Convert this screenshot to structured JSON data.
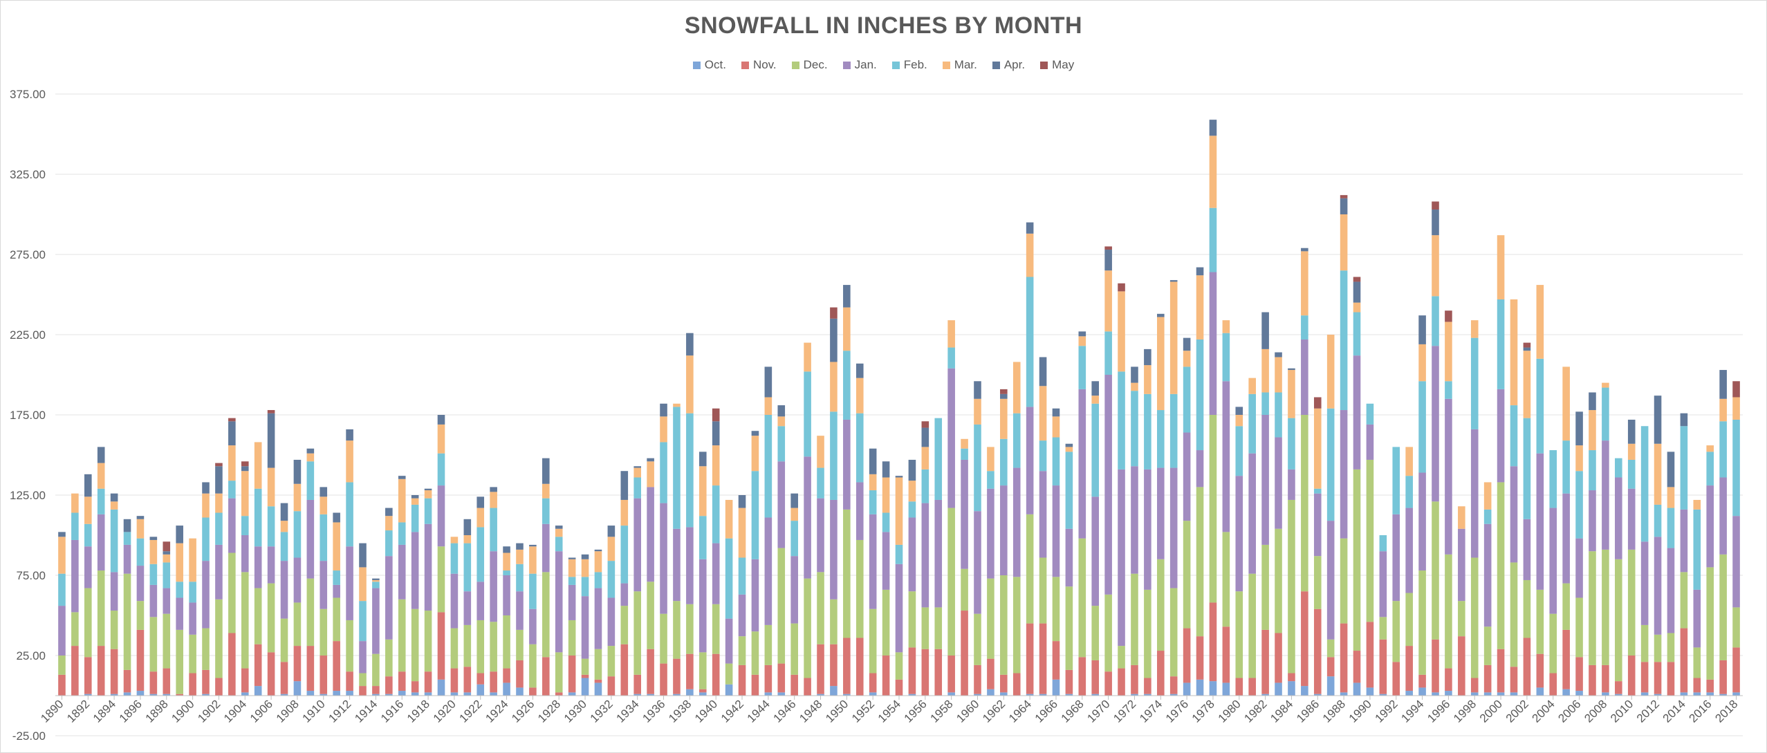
{
  "chart_data": {
    "type": "bar",
    "stacked": true,
    "title": "SNOWFALL IN INCHES BY MONTH",
    "xlabel": "",
    "ylabel": "",
    "ylim": [
      -25,
      375
    ],
    "yticks": [
      "375.00",
      "325.00",
      "275.00",
      "225.00",
      "175.00",
      "125.00",
      "75.00",
      "25.00",
      "-25.00"
    ],
    "legend_position": "top",
    "grid": true,
    "categories": [
      1890,
      1891,
      1892,
      1893,
      1894,
      1895,
      1896,
      1897,
      1898,
      1899,
      1900,
      1901,
      1902,
      1903,
      1904,
      1905,
      1906,
      1907,
      1908,
      1909,
      1910,
      1911,
      1912,
      1913,
      1914,
      1915,
      1916,
      1917,
      1918,
      1919,
      1920,
      1921,
      1922,
      1923,
      1924,
      1925,
      1926,
      1927,
      1928,
      1929,
      1930,
      1931,
      1932,
      1933,
      1934,
      1935,
      1936,
      1937,
      1938,
      1939,
      1940,
      1941,
      1942,
      1943,
      1944,
      1945,
      1946,
      1947,
      1948,
      1949,
      1950,
      1951,
      1952,
      1953,
      1954,
      1955,
      1956,
      1957,
      1958,
      1959,
      1960,
      1961,
      1962,
      1963,
      1964,
      1965,
      1966,
      1967,
      1968,
      1969,
      1970,
      1971,
      1972,
      1973,
      1974,
      1975,
      1976,
      1977,
      1978,
      1979,
      1980,
      1981,
      1982,
      1983,
      1984,
      1985,
      1986,
      1987,
      1988,
      1989,
      1990,
      1991,
      1992,
      1993,
      1994,
      1995,
      1996,
      1997,
      1998,
      1999,
      2000,
      2001,
      2002,
      2003,
      2004,
      2005,
      2006,
      2007,
      2008,
      2009,
      2010,
      2011,
      2012,
      2013,
      2014,
      2015,
      2016,
      2017,
      2018
    ],
    "xtick_labels": [
      "1890",
      "1892",
      "1894",
      "1896",
      "1898",
      "1900",
      "1902",
      "1904",
      "1906",
      "1908",
      "1910",
      "1912",
      "1914",
      "1916",
      "1918",
      "1920",
      "1922",
      "1924",
      "1926",
      "1928",
      "1930",
      "1932",
      "1934",
      "1936",
      "1938",
      "1940",
      "1942",
      "1944",
      "1946",
      "1948",
      "1950",
      "1952",
      "1954",
      "1956",
      "1958",
      "1960",
      "1962",
      "1964",
      "1966",
      "1968",
      "1970",
      "1972",
      "1974",
      "1976",
      "1978",
      "1980",
      "1982",
      "1984",
      "1986",
      "1988",
      "1990",
      "1992",
      "1994",
      "1996",
      "1998",
      "2000",
      "2002",
      "2004",
      "2006",
      "2008",
      "2010",
      "2012",
      "2014",
      "2016",
      "2018"
    ],
    "series": [
      {
        "name": "Oct.",
        "color": "#7ea6d9",
        "values": [
          0,
          0,
          1,
          0,
          1,
          2,
          3,
          1,
          1,
          0,
          0,
          1,
          0,
          0,
          2,
          6,
          0,
          1,
          9,
          3,
          1,
          3,
          3,
          0,
          1,
          1,
          3,
          2,
          2,
          10,
          2,
          2,
          7,
          2,
          8,
          5,
          0,
          0,
          0,
          2,
          11,
          8,
          0,
          0,
          1,
          1,
          0,
          1,
          4,
          2,
          0,
          7,
          0,
          0,
          2,
          2,
          0,
          0,
          1,
          6,
          1,
          0,
          2,
          0,
          0,
          1,
          0,
          0,
          2,
          0,
          1,
          4,
          2,
          0,
          1,
          1,
          10,
          1,
          0,
          1,
          0,
          0,
          1,
          1,
          0,
          1,
          8,
          10,
          9,
          8,
          0,
          0,
          1,
          8,
          9,
          6,
          1,
          12,
          2,
          8,
          5,
          1,
          0,
          3,
          5,
          2,
          3,
          0,
          2,
          2,
          2,
          2,
          0,
          5,
          0,
          4,
          3,
          0,
          2,
          1,
          0,
          2,
          1,
          0,
          2,
          2,
          2,
          1,
          2
        ]
      },
      {
        "name": "Nov.",
        "color": "#d97673",
        "values": [
          13,
          31,
          23,
          31,
          28,
          14,
          38,
          14,
          16,
          1,
          14,
          15,
          11,
          39,
          15,
          26,
          27,
          20,
          22,
          28,
          24,
          31,
          12,
          6,
          5,
          11,
          12,
          7,
          13,
          42,
          15,
          16,
          7,
          13,
          9,
          17,
          5,
          24,
          2,
          23,
          2,
          2,
          12,
          32,
          12,
          28,
          20,
          22,
          22,
          2,
          26,
          0,
          19,
          13,
          17,
          18,
          13,
          11,
          31,
          26,
          35,
          36,
          12,
          25,
          10,
          29,
          29,
          29,
          23,
          53,
          18,
          19,
          11,
          14,
          44,
          44,
          24,
          15,
          24,
          21,
          15,
          17,
          18,
          10,
          28,
          11,
          34,
          27,
          49,
          35,
          11,
          11,
          40,
          31,
          5,
          59,
          53,
          12,
          43,
          20,
          41,
          34,
          21,
          28,
          8,
          33,
          14,
          37,
          9,
          17,
          27,
          16,
          36,
          21,
          14,
          37,
          21,
          19,
          17,
          8,
          25,
          19,
          20,
          21,
          40,
          9,
          8,
          21,
          28
        ]
      },
      {
        "name": "Dec.",
        "color": "#b3cc7c",
        "values": [
          12,
          21,
          43,
          47,
          24,
          60,
          18,
          34,
          34,
          40,
          24,
          26,
          49,
          50,
          60,
          35,
          43,
          27,
          27,
          42,
          29,
          27,
          32,
          8,
          20,
          23,
          45,
          45,
          38,
          41,
          25,
          26,
          33,
          31,
          33,
          19,
          27,
          53,
          25,
          22,
          10,
          19,
          19,
          24,
          52,
          42,
          31,
          36,
          31,
          23,
          31,
          13,
          18,
          27,
          25,
          72,
          32,
          62,
          45,
          28,
          80,
          61,
          40,
          41,
          17,
          35,
          26,
          26,
          92,
          26,
          32,
          50,
          62,
          60,
          68,
          41,
          40,
          52,
          74,
          34,
          48,
          14,
          57,
          55,
          57,
          55,
          67,
          93,
          117,
          59,
          54,
          65,
          53,
          65,
          108,
          110,
          33,
          11,
          53,
          113,
          101,
          14,
          38,
          33,
          65,
          86,
          71,
          22,
          75,
          24,
          104,
          65,
          36,
          40,
          37,
          29,
          37,
          71,
          72,
          76,
          66,
          23,
          17,
          18,
          35,
          19,
          70,
          66,
          25
        ]
      },
      {
        "name": "Jan.",
        "color": "#a18bc0",
        "values": [
          31,
          45,
          26,
          35,
          24,
          18,
          22,
          20,
          16,
          20,
          20,
          42,
          34,
          34,
          23,
          26,
          23,
          36,
          28,
          49,
          30,
          8,
          46,
          20,
          41,
          52,
          34,
          48,
          54,
          38,
          34,
          21,
          24,
          44,
          25,
          24,
          22,
          30,
          63,
          22,
          39,
          38,
          30,
          14,
          58,
          59,
          69,
          45,
          48,
          58,
          38,
          28,
          26,
          45,
          67,
          54,
          42,
          76,
          46,
          62,
          56,
          36,
          59,
          36,
          55,
          46,
          65,
          67,
          87,
          68,
          64,
          56,
          56,
          68,
          67,
          54,
          57,
          36,
          93,
          68,
          137,
          110,
          67,
          75,
          57,
          75,
          55,
          23,
          89,
          94,
          72,
          75,
          81,
          57,
          19,
          47,
          39,
          74,
          80,
          71,
          22,
          41,
          54,
          53,
          61,
          97,
          97,
          45,
          80,
          64,
          58,
          60,
          38,
          85,
          66,
          56,
          37,
          38,
          68,
          51,
          38,
          52,
          61,
          53,
          39,
          36,
          51,
          48,
          57
        ]
      },
      {
        "name": "Feb.",
        "color": "#76c5d8",
        "values": [
          20,
          17,
          14,
          16,
          39,
          8,
          17,
          13,
          16,
          10,
          13,
          27,
          20,
          11,
          12,
          36,
          25,
          18,
          29,
          24,
          29,
          9,
          40,
          25,
          4,
          16,
          14,
          17,
          16,
          20,
          19,
          30,
          34,
          27,
          3,
          17,
          22,
          16,
          9,
          5,
          12,
          10,
          23,
          36,
          13,
          0,
          38,
          76,
          71,
          27,
          36,
          50,
          23,
          55,
          64,
          22,
          22,
          53,
          19,
          55,
          43,
          43,
          15,
          12,
          12,
          10,
          21,
          51,
          13,
          7,
          54,
          11,
          29,
          34,
          81,
          19,
          30,
          48,
          27,
          58,
          27,
          61,
          47,
          47,
          36,
          46,
          41,
          69,
          40,
          30,
          31,
          37,
          14,
          28,
          32,
          15,
          3,
          70,
          87,
          27,
          13,
          10,
          42,
          20,
          57,
          31,
          11,
          0,
          57,
          9,
          56,
          38,
          63,
          59,
          36,
          33,
          42,
          25,
          33,
          12,
          18,
          72,
          20,
          25,
          52,
          50,
          21,
          35,
          60
        ]
      },
      {
        "name": "Mar.",
        "color": "#f7ba7e",
        "values": [
          23,
          12,
          17,
          16,
          5,
          0,
          12,
          15,
          5,
          24,
          27,
          15,
          12,
          22,
          28,
          29,
          24,
          7,
          17,
          5,
          11,
          30,
          26,
          21,
          1,
          9,
          27,
          4,
          5,
          18,
          4,
          5,
          12,
          10,
          11,
          9,
          17,
          9,
          5,
          11,
          11,
          13,
          15,
          16,
          6,
          16,
          16,
          2,
          36,
          31,
          25,
          24,
          31,
          22,
          11,
          6,
          8,
          18,
          20,
          31,
          27,
          22,
          10,
          22,
          42,
          13,
          14,
          0,
          17,
          6,
          16,
          15,
          25,
          32,
          27,
          34,
          13,
          3,
          6,
          5,
          38,
          50,
          5,
          18,
          58,
          70,
          10,
          40,
          45,
          8,
          7,
          10,
          27,
          22,
          30,
          40,
          50,
          46,
          35,
          6,
          0,
          0,
          0,
          18,
          23,
          38,
          37,
          14,
          11,
          17,
          40,
          66,
          42,
          46,
          0,
          46,
          16,
          25,
          3,
          0,
          10,
          0,
          38,
          13,
          0,
          6,
          4,
          14,
          14
        ]
      },
      {
        "name": "Apr.",
        "color": "#61799a",
        "values": [
          3,
          0,
          14,
          10,
          5,
          8,
          2,
          2,
          2,
          11,
          0,
          7,
          17,
          15,
          3,
          0,
          34,
          11,
          15,
          3,
          6,
          6,
          7,
          15,
          1,
          5,
          2,
          2,
          1,
          6,
          0,
          10,
          7,
          3,
          4,
          4,
          1,
          16,
          2,
          1,
          3,
          1,
          7,
          18,
          1,
          2,
          8,
          0,
          14,
          9,
          15,
          0,
          8,
          3,
          19,
          7,
          9,
          0,
          0,
          27,
          14,
          9,
          16,
          10,
          1,
          13,
          12,
          0,
          0,
          0,
          11,
          0,
          3,
          0,
          7,
          18,
          5,
          2,
          3,
          9,
          13,
          0,
          10,
          10,
          2,
          1,
          8,
          5,
          10,
          0,
          5,
          0,
          23,
          3,
          1,
          2,
          0,
          0,
          10,
          13,
          0,
          0,
          0,
          0,
          18,
          16,
          0,
          0,
          0,
          0,
          0,
          0,
          2,
          0,
          0,
          0,
          21,
          11,
          0,
          0,
          15,
          0,
          30,
          22,
          8,
          0,
          0,
          18,
          0
        ]
      },
      {
        "name": "May",
        "color": "#9f5757",
        "values": [
          0,
          0,
          0,
          0,
          0,
          0,
          0,
          0,
          6,
          0,
          0,
          0,
          2,
          2,
          3,
          0,
          2,
          0,
          0,
          0,
          0,
          0,
          0,
          0,
          0,
          0,
          0,
          0,
          0,
          0,
          0,
          0,
          0,
          0,
          0,
          0,
          0,
          0,
          0,
          0,
          0,
          0,
          0,
          0,
          0,
          0,
          0,
          0,
          0,
          0,
          8,
          0,
          0,
          0,
          0,
          0,
          0,
          0,
          0,
          7,
          0,
          0,
          0,
          0,
          0,
          0,
          4,
          0,
          0,
          0,
          0,
          0,
          3,
          0,
          0,
          0,
          0,
          0,
          0,
          0,
          2,
          5,
          0,
          0,
          0,
          0,
          0,
          0,
          0,
          0,
          0,
          0,
          0,
          0,
          0,
          0,
          7,
          0,
          2,
          3,
          0,
          0,
          0,
          0,
          0,
          5,
          7,
          0,
          0,
          0,
          0,
          0,
          3,
          0,
          0,
          0,
          0,
          0,
          0,
          0,
          0,
          0,
          0,
          0,
          0,
          0,
          0,
          0,
          10
        ]
      }
    ]
  }
}
